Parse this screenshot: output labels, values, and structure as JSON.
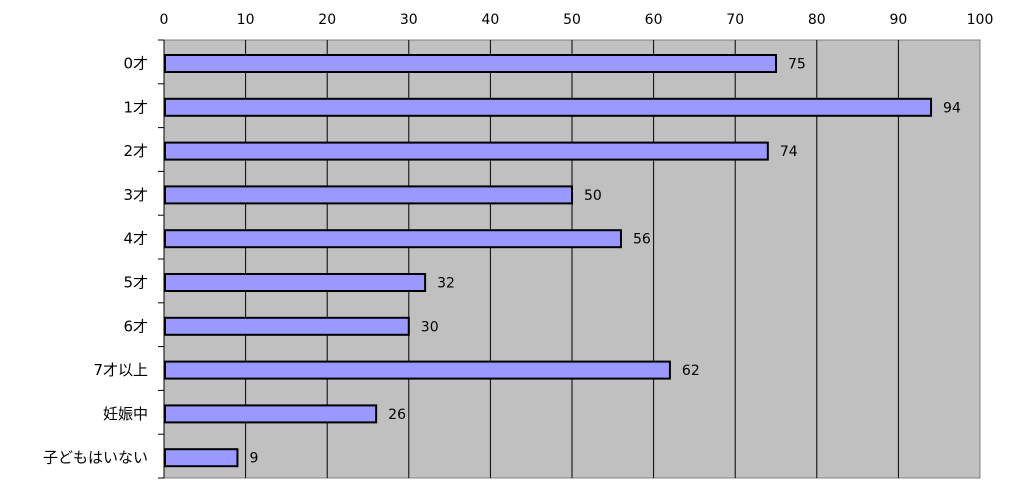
{
  "chart_data": {
    "type": "bar",
    "orientation": "horizontal",
    "categories": [
      "0才",
      "1才",
      "2才",
      "3才",
      "4才",
      "5才",
      "6才",
      "7才以上",
      "妊娠中",
      "子どもはいない"
    ],
    "values": [
      75,
      94,
      74,
      50,
      56,
      32,
      30,
      62,
      26,
      9
    ],
    "xlim": [
      0,
      100
    ],
    "xticks": [
      0,
      10,
      20,
      30,
      40,
      50,
      60,
      70,
      80,
      90,
      100
    ],
    "tick_labels": [
      "0",
      "10",
      "20",
      "30",
      "40",
      "50",
      "60",
      "70",
      "80",
      "90",
      "100"
    ],
    "axis_position": "top",
    "grid": true,
    "legend": "none",
    "colors": {
      "bar_fill": "#9999ff",
      "bar_stroke": "#000000",
      "plot_background": "#c0c0c0",
      "gridline": "#000000"
    }
  }
}
